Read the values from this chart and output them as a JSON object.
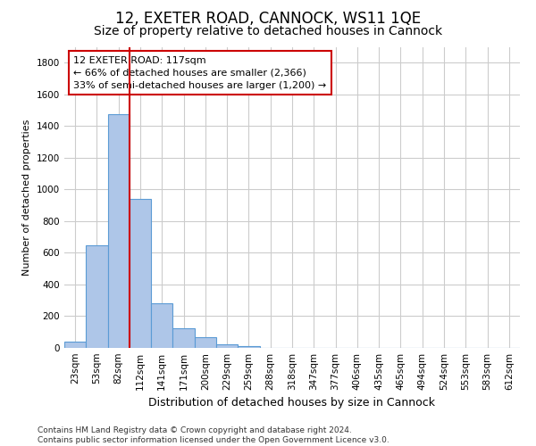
{
  "title": "12, EXETER ROAD, CANNOCK, WS11 1QE",
  "subtitle": "Size of property relative to detached houses in Cannock",
  "xlabel": "Distribution of detached houses by size in Cannock",
  "ylabel": "Number of detached properties",
  "categories": [
    "23sqm",
    "53sqm",
    "82sqm",
    "112sqm",
    "141sqm",
    "171sqm",
    "200sqm",
    "229sqm",
    "259sqm",
    "288sqm",
    "318sqm",
    "347sqm",
    "377sqm",
    "406sqm",
    "435sqm",
    "465sqm",
    "494sqm",
    "524sqm",
    "553sqm",
    "583sqm",
    "612sqm"
  ],
  "values": [
    40,
    648,
    1474,
    938,
    283,
    125,
    65,
    22,
    12,
    0,
    0,
    0,
    0,
    0,
    0,
    0,
    0,
    0,
    0,
    0,
    0
  ],
  "bar_color": "#aec6e8",
  "bar_edgecolor": "#5b9bd5",
  "grid_color": "#cccccc",
  "background_color": "#ffffff",
  "annotation_box_text": "12 EXETER ROAD: 117sqm\n← 66% of detached houses are smaller (2,366)\n33% of semi-detached houses are larger (1,200) →",
  "annotation_box_edgecolor": "#cc0000",
  "vline_x": 2.5,
  "vline_color": "#cc0000",
  "ylim": [
    0,
    1900
  ],
  "yticks": [
    0,
    200,
    400,
    600,
    800,
    1000,
    1200,
    1400,
    1600,
    1800
  ],
  "footer": "Contains HM Land Registry data © Crown copyright and database right 2024.\nContains public sector information licensed under the Open Government Licence v3.0.",
  "title_fontsize": 12,
  "subtitle_fontsize": 10,
  "xlabel_fontsize": 9,
  "ylabel_fontsize": 8,
  "tick_fontsize": 7.5,
  "footer_fontsize": 6.5,
  "annot_fontsize": 8
}
